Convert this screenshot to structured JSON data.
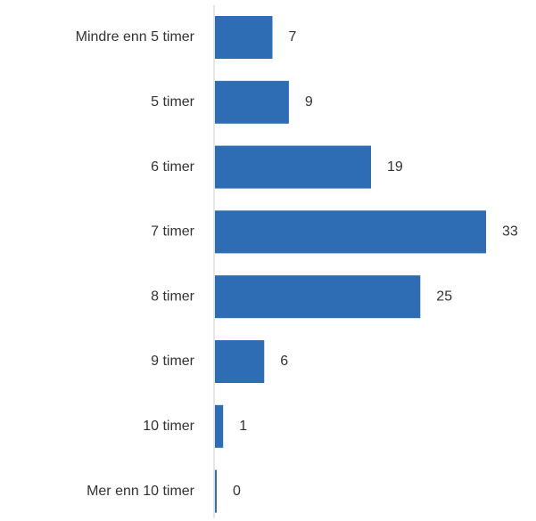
{
  "chart_data": {
    "type": "barh",
    "categories": [
      "Mindre enn 5 timer",
      "5 timer",
      "6 timer",
      "7 timer",
      "8 timer",
      "9 timer",
      "10 timer",
      "Mer enn 10 timer"
    ],
    "values": [
      7,
      9,
      19,
      33,
      25,
      6,
      1,
      0
    ],
    "color": "#2e6db4"
  }
}
